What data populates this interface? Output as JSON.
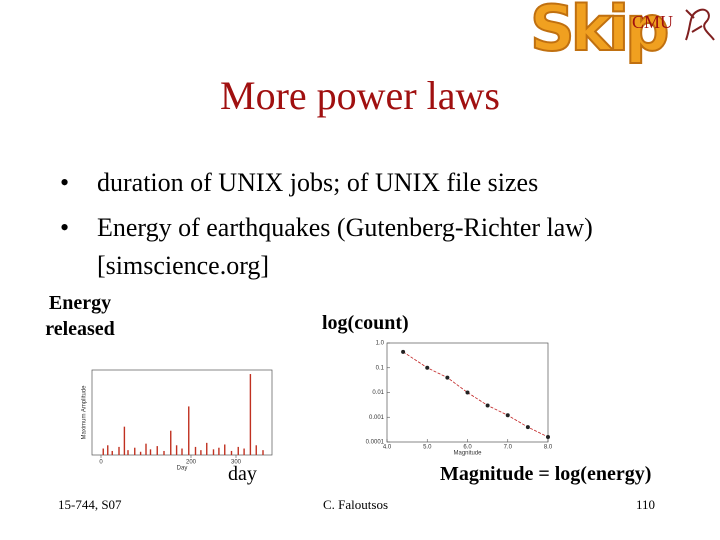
{
  "header": {
    "logo": "Skip",
    "org": "CMU"
  },
  "title": "More power laws",
  "bullets": [
    "duration of UNIX jobs; of UNIX file sizes",
    "Energy of earthquakes (Gutenberg-Richter law) [simscience.org]"
  ],
  "labels": {
    "energy": "Energy released",
    "count": "log(count)",
    "day": "day",
    "magnitude": "Magnitude = log(energy)"
  },
  "footer": {
    "course": "15-744, S07",
    "author": "C. Faloutsos",
    "page": "110"
  },
  "chart_data": [
    {
      "type": "bar",
      "x_label": "Day",
      "y_label": "Maximum Amplitude",
      "color": "#c03020",
      "x": [
        5,
        15,
        25,
        40,
        52,
        60,
        75,
        88,
        100,
        110,
        125,
        140,
        155,
        168,
        180,
        195,
        210,
        222,
        235,
        250,
        262,
        275,
        290,
        305,
        318,
        332,
        345,
        360
      ],
      "values": [
        8,
        12,
        5,
        10,
        35,
        6,
        9,
        4,
        14,
        7,
        11,
        5,
        30,
        12,
        8,
        60,
        10,
        6,
        15,
        7,
        9,
        13,
        5,
        10,
        8,
        100,
        12,
        6
      ],
      "xlim": [
        -20,
        380
      ],
      "ylim": [
        0,
        105
      ],
      "xticks": [
        0,
        200,
        300
      ]
    },
    {
      "type": "scatter",
      "x_label": "Magnitude",
      "color": "#c02020",
      "log_y": true,
      "x": [
        4.4,
        5.0,
        5.5,
        6.0,
        6.5,
        7.0,
        7.5,
        8.0
      ],
      "values": [
        0.44,
        0.1,
        0.04,
        0.01,
        0.003,
        0.0012,
        0.0004,
        0.00016
      ],
      "xlim": [
        4.0,
        8.0
      ],
      "ylim": [
        0.0001,
        1
      ],
      "xticks": [
        {
          "value": 4,
          "label": "4.0"
        },
        {
          "value": 5,
          "label": "5.0"
        },
        {
          "value": 6,
          "label": "6.0"
        },
        {
          "value": 7,
          "label": "7.0"
        },
        {
          "value": 8,
          "label": "8.0"
        }
      ],
      "yticks": [
        {
          "value": 1,
          "label": "1.0"
        },
        0.1,
        0.01,
        0.001,
        0.0001
      ]
    }
  ]
}
